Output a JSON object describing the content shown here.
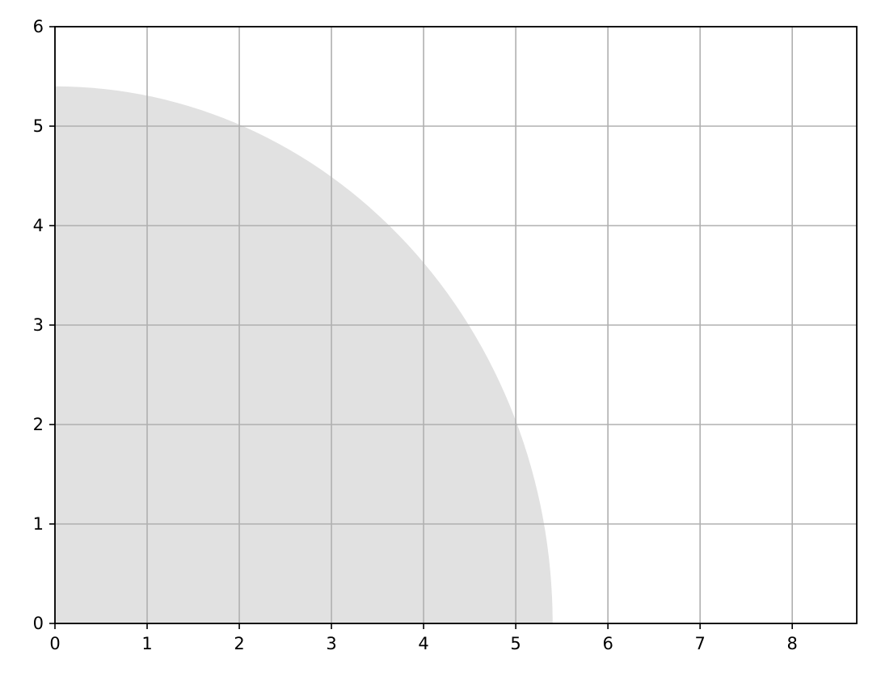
{
  "chart_data": {
    "type": "area",
    "title": "",
    "xlabel": "",
    "ylabel": "",
    "xlim": [
      0,
      8.7
    ],
    "ylim": [
      0,
      6
    ],
    "grid": true,
    "x_ticks": [
      0,
      1,
      2,
      3,
      4,
      5,
      6,
      7,
      8
    ],
    "y_ticks": [
      0,
      1,
      2,
      3,
      4,
      5,
      6
    ],
    "x_tick_labels": [
      "0",
      "1",
      "2",
      "3",
      "4",
      "5",
      "6",
      "7",
      "8"
    ],
    "y_tick_labels": [
      "0",
      "1",
      "2",
      "3",
      "4",
      "5",
      "6"
    ],
    "shapes": [
      {
        "kind": "quarter-circle",
        "center": [
          0,
          0
        ],
        "radius": 5.4,
        "color": "#e1e1e1"
      }
    ],
    "colors": {
      "fill": "#e1e1e1",
      "grid": "#b0b0b0",
      "axis": "#000000",
      "background": "#ffffff"
    }
  }
}
